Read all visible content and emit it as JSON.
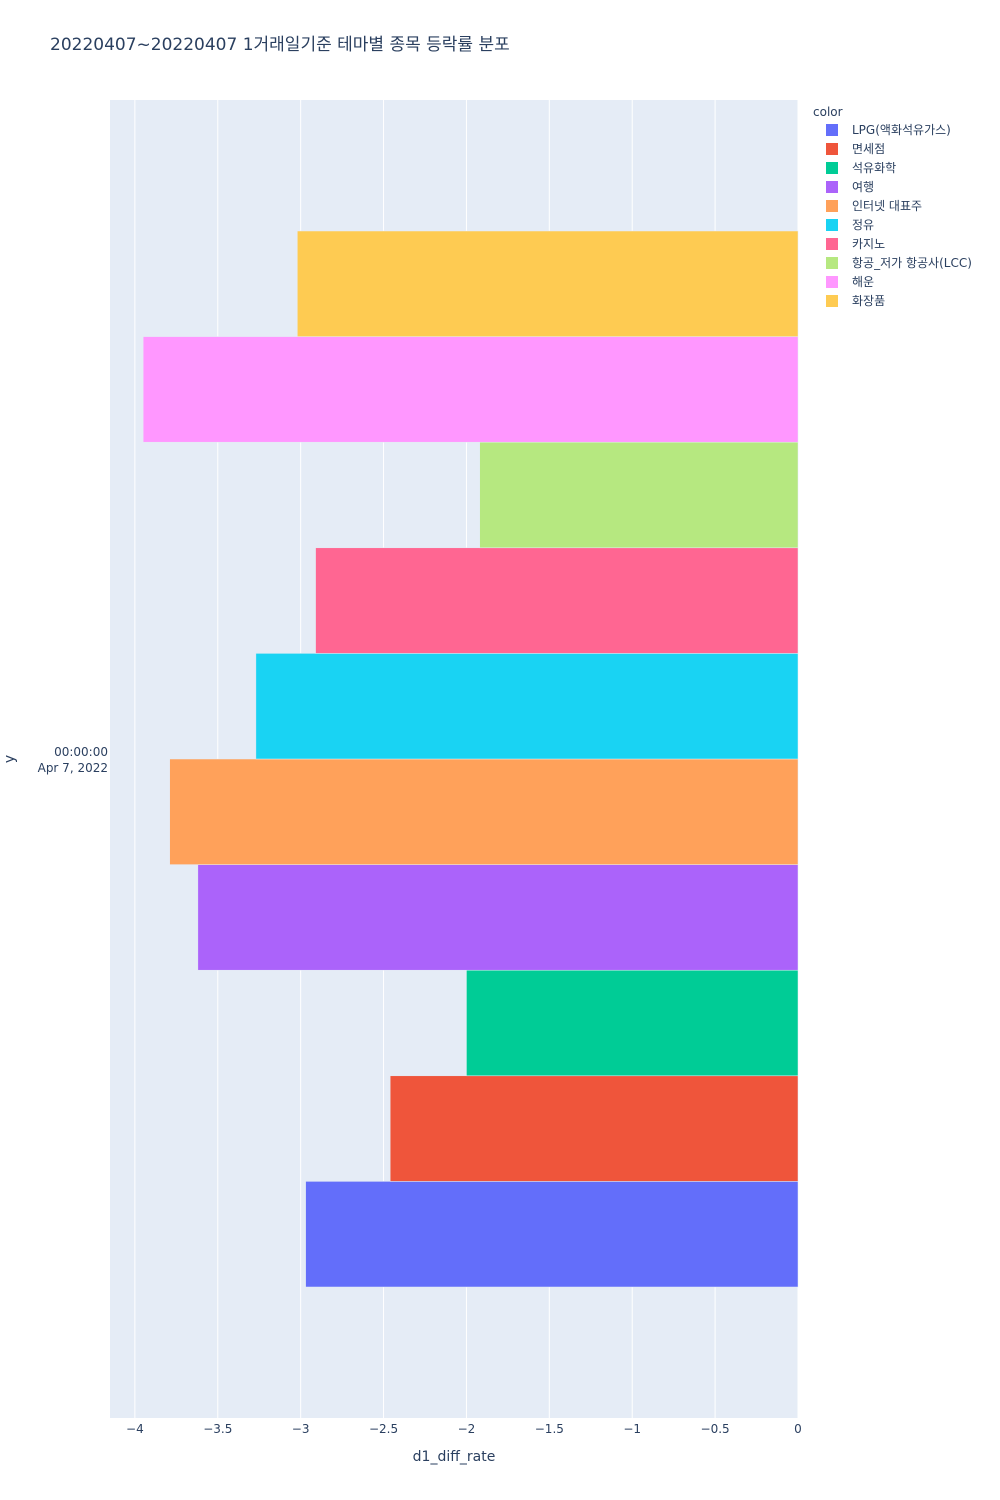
{
  "title": "20220407~20220407 1거래일기준 테마별 종목 등락률 분포",
  "chart_data": {
    "type": "bar",
    "orientation": "horizontal",
    "barmode": "group",
    "title": "20220407~20220407 1거래일기준 테마별 종목 등락률 분포",
    "xlabel": "d1_diff_rate",
    "ylabel": "y",
    "xlim": [
      -4.15,
      0
    ],
    "xticks": [
      -4,
      -3.5,
      -3,
      -2.5,
      -2,
      -1.5,
      -1,
      -0.5,
      0
    ],
    "xtick_labels": [
      "−4",
      "−3.5",
      "−3",
      "−2.5",
      "−2",
      "−1.5",
      "−1",
      "−0.5",
      "0"
    ],
    "categories": [
      "Apr 7, 2022 00:00:00"
    ],
    "category_label_line1": "00:00:00",
    "category_label_line2": "Apr 7, 2022",
    "grid": true,
    "legend_title": "color",
    "legend_position": "right",
    "series": [
      {
        "name": "LPG(액화석유가스)",
        "color": "#636efa",
        "values": [
          -2.97
        ]
      },
      {
        "name": "면세점",
        "color": "#ef553b",
        "values": [
          -2.46
        ]
      },
      {
        "name": "석유화학",
        "color": "#00cc96",
        "values": [
          -2.0
        ]
      },
      {
        "name": "여행",
        "color": "#ab63fa",
        "values": [
          -3.62
        ]
      },
      {
        "name": "인터넷 대표주",
        "color": "#ffa15a",
        "values": [
          -3.79
        ]
      },
      {
        "name": "정유",
        "color": "#19d3f3",
        "values": [
          -3.27
        ]
      },
      {
        "name": "카지노",
        "color": "#ff6692",
        "values": [
          -2.91
        ]
      },
      {
        "name": "항공_저가 항공사(LCC)",
        "color": "#b6e880",
        "values": [
          -1.92
        ]
      },
      {
        "name": "해운",
        "color": "#ff97ff",
        "values": [
          -3.95
        ]
      },
      {
        "name": "화장품",
        "color": "#fecb52",
        "values": [
          -3.02
        ]
      }
    ]
  }
}
